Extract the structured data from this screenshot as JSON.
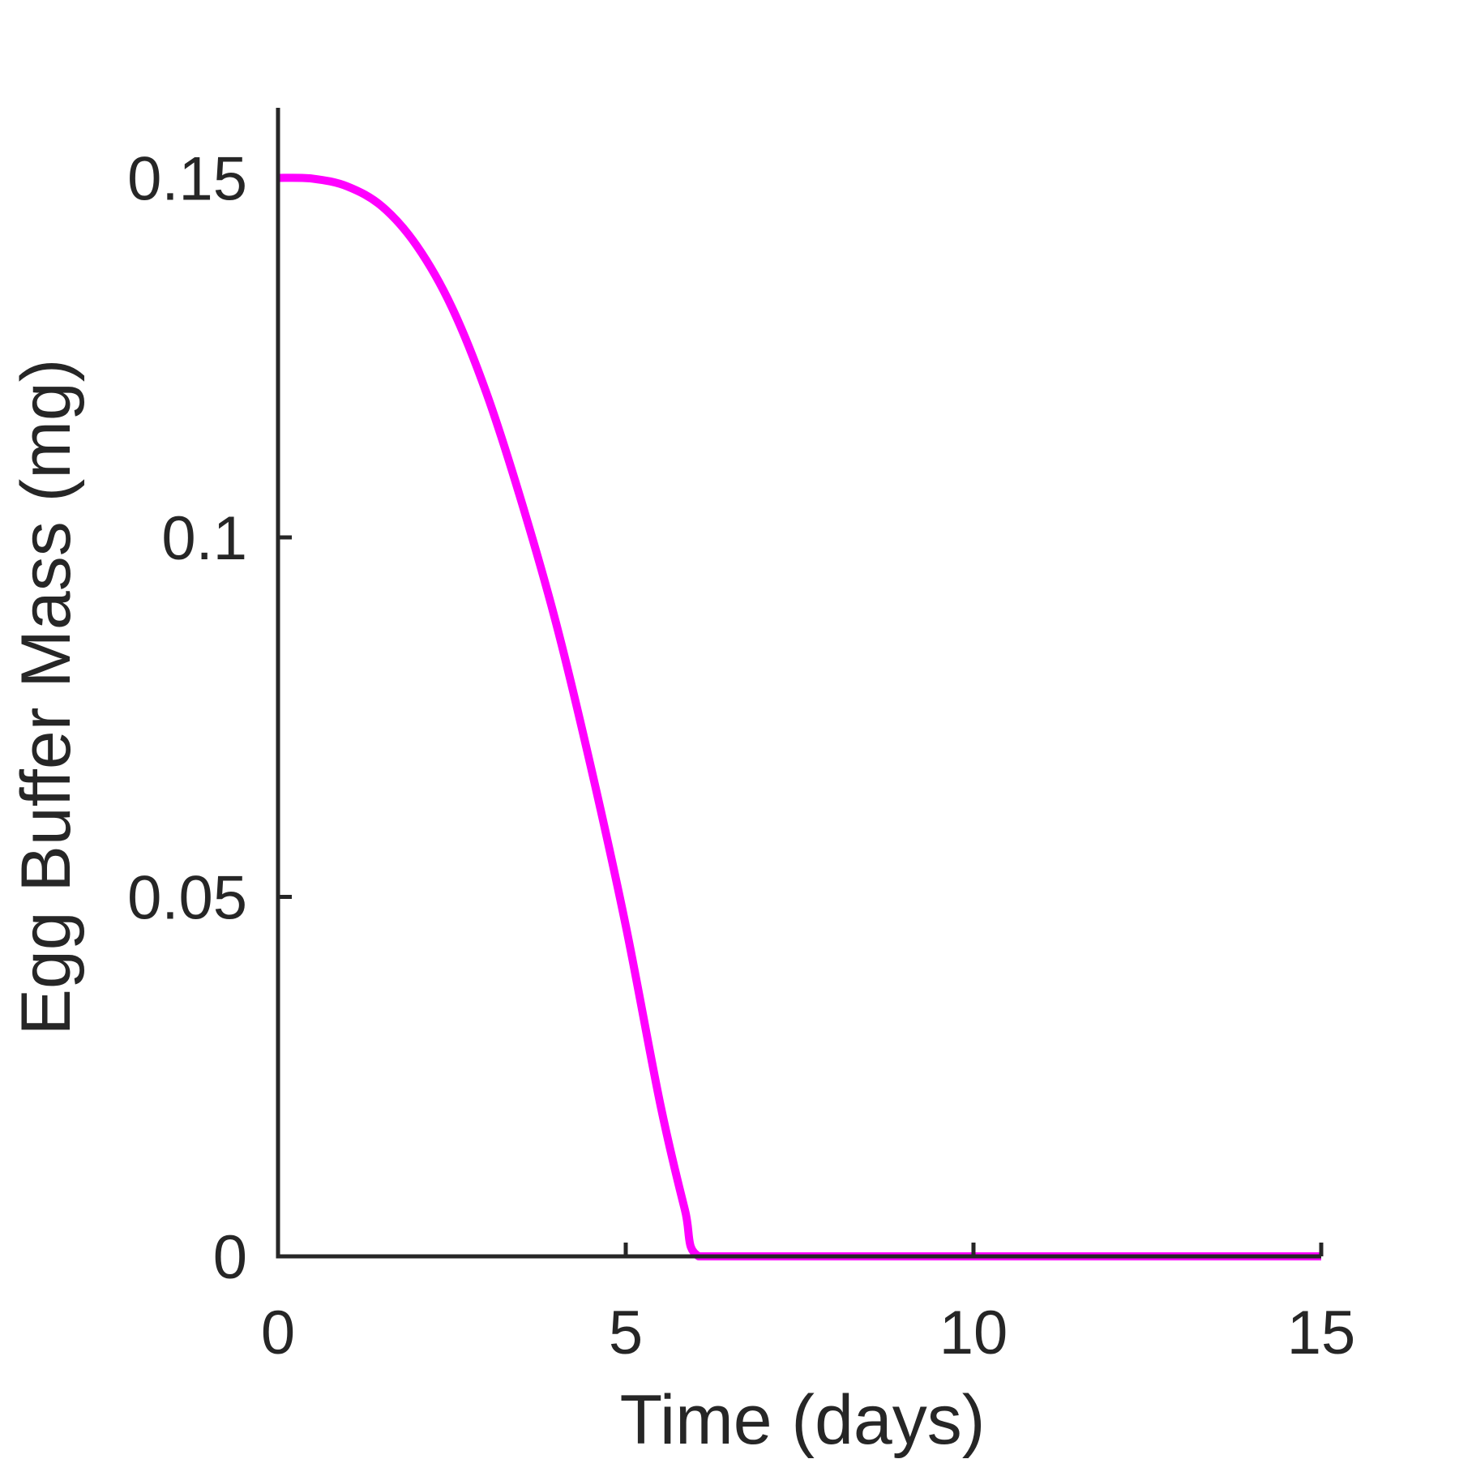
{
  "chart_data": {
    "type": "line",
    "title": "",
    "xlabel": "Time (days)",
    "ylabel": "Egg Buffer Mass (mg)",
    "xlim": [
      0,
      15
    ],
    "ylim": [
      0,
      0.16
    ],
    "xticks": [
      0,
      5,
      10,
      15
    ],
    "xtick_labels": [
      "0",
      "5",
      "10",
      "15"
    ],
    "yticks": [
      0,
      0.05,
      0.1,
      0.15
    ],
    "ytick_labels": [
      "0",
      "0.05",
      "0.1",
      "0.15"
    ],
    "grid": false,
    "legend": "none",
    "axis_color": "#262626",
    "series": [
      {
        "color": "#ff00ff",
        "x": [
          0,
          0.5,
          1,
          1.5,
          2,
          2.5,
          3,
          3.5,
          4,
          4.5,
          5,
          5.5,
          5.85,
          6.05,
          7,
          8,
          9,
          10,
          11,
          12,
          13,
          14,
          15
        ],
        "y": [
          0.15,
          0.1499,
          0.1488,
          0.146,
          0.1405,
          0.132,
          0.12,
          0.105,
          0.088,
          0.068,
          0.046,
          0.021,
          0.0065,
          0,
          0,
          0,
          0,
          0,
          0,
          0,
          0,
          0,
          0
        ]
      }
    ]
  }
}
